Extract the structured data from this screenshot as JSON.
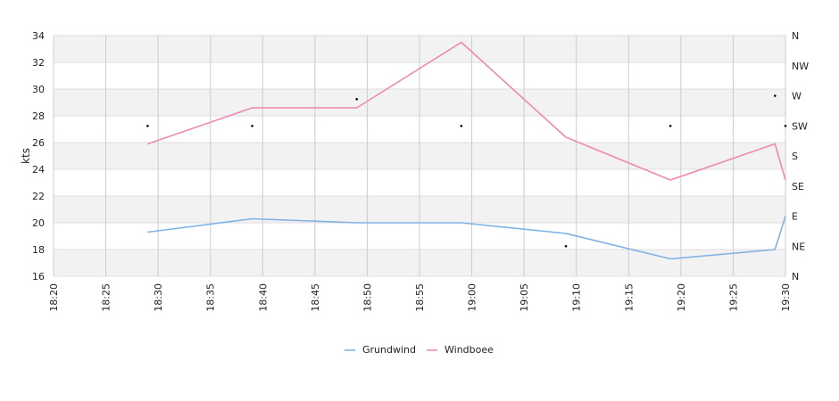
{
  "chart_data": {
    "type": "line",
    "ylabel": "kts",
    "ylim": [
      16,
      34
    ],
    "y_ticks": [
      "16",
      "18",
      "20",
      "22",
      "24",
      "26",
      "28",
      "30",
      "32",
      "34"
    ],
    "x_ticks": [
      "18:20",
      "18:25",
      "18:30",
      "18:35",
      "18:40",
      "18:45",
      "18:50",
      "18:55",
      "19:00",
      "19:05",
      "19:10",
      "19:15",
      "19:20",
      "19:25",
      "19:30"
    ],
    "x_range": [
      "18:20",
      "19:30"
    ],
    "right_axis": {
      "labels": [
        "N",
        "NE",
        "E",
        "SE",
        "S",
        "SW",
        "W",
        "NW",
        "N"
      ],
      "range_degrees": [
        0,
        360
      ]
    },
    "grid": true,
    "legend_position": "bottom",
    "series": [
      {
        "name": "Grundwind",
        "color": "#7fb2e5",
        "x": [
          "18:29",
          "18:39",
          "18:49",
          "18:59",
          "19:09",
          "19:19",
          "19:29",
          "19:30"
        ],
        "values": [
          19.3,
          20.3,
          20.0,
          20.0,
          19.2,
          17.3,
          18.0,
          20.5
        ]
      },
      {
        "name": "Windboee",
        "color": "#ee88b4",
        "x": [
          "18:29",
          "18:39",
          "18:49",
          "18:59",
          "19:09",
          "19:19",
          "19:29",
          "19:30"
        ],
        "values": [
          25.9,
          28.6,
          28.6,
          33.5,
          26.4,
          23.2,
          25.9,
          23.2
        ]
      }
    ],
    "direction_markers": {
      "x": [
        "18:29",
        "18:39",
        "18:49",
        "18:59",
        "19:09",
        "19:19",
        "19:29",
        "19:30"
      ],
      "degrees": [
        225,
        225,
        265,
        225,
        45,
        225,
        270,
        225
      ]
    }
  }
}
